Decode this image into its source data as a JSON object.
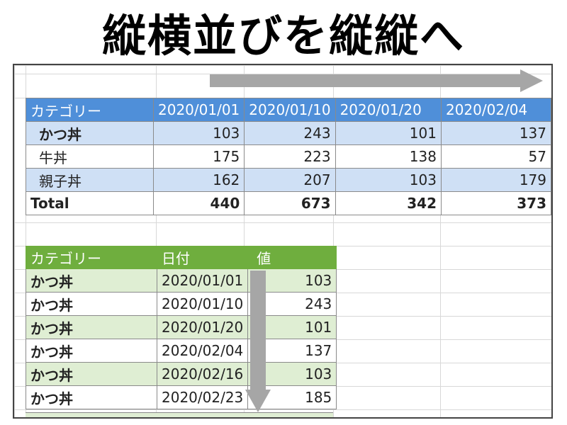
{
  "title": "縦横並びを縦縦へ",
  "top_table": {
    "header": [
      "カテゴリー",
      "2020/01/01",
      "2020/01/10",
      "2020/01/20",
      "2020/02/04"
    ],
    "rows": [
      {
        "category": "かつ丼",
        "values": [
          "103",
          "243",
          "101",
          "137"
        ]
      },
      {
        "category": "牛丼",
        "values": [
          "175",
          "223",
          "138",
          "57"
        ]
      },
      {
        "category": "親子丼",
        "values": [
          "162",
          "207",
          "103",
          "179"
        ]
      }
    ],
    "total": {
      "label": "Total",
      "values": [
        "440",
        "673",
        "342",
        "373"
      ]
    }
  },
  "bottom_table": {
    "header": [
      "カテゴリー",
      "日付",
      "値"
    ],
    "rows": [
      {
        "category": "かつ丼",
        "date": "2020/01/01",
        "value": "103"
      },
      {
        "category": "かつ丼",
        "date": "2020/01/10",
        "value": "243"
      },
      {
        "category": "かつ丼",
        "date": "2020/01/20",
        "value": "101"
      },
      {
        "category": "かつ丼",
        "date": "2020/02/04",
        "value": "137"
      },
      {
        "category": "かつ丼",
        "date": "2020/02/16",
        "value": "103"
      },
      {
        "category": "かつ丼",
        "date": "2020/02/23",
        "value": "185"
      }
    ]
  },
  "colors": {
    "top_header": "#4f8fd9",
    "top_band": "#cfe0f5",
    "bottom_header": "#6fae3e",
    "bottom_band": "#dfeed3",
    "arrow": "#a6a6a6"
  },
  "icons": {
    "horizontal_arrow": "arrow-right-icon",
    "vertical_arrow": "arrow-down-icon"
  }
}
